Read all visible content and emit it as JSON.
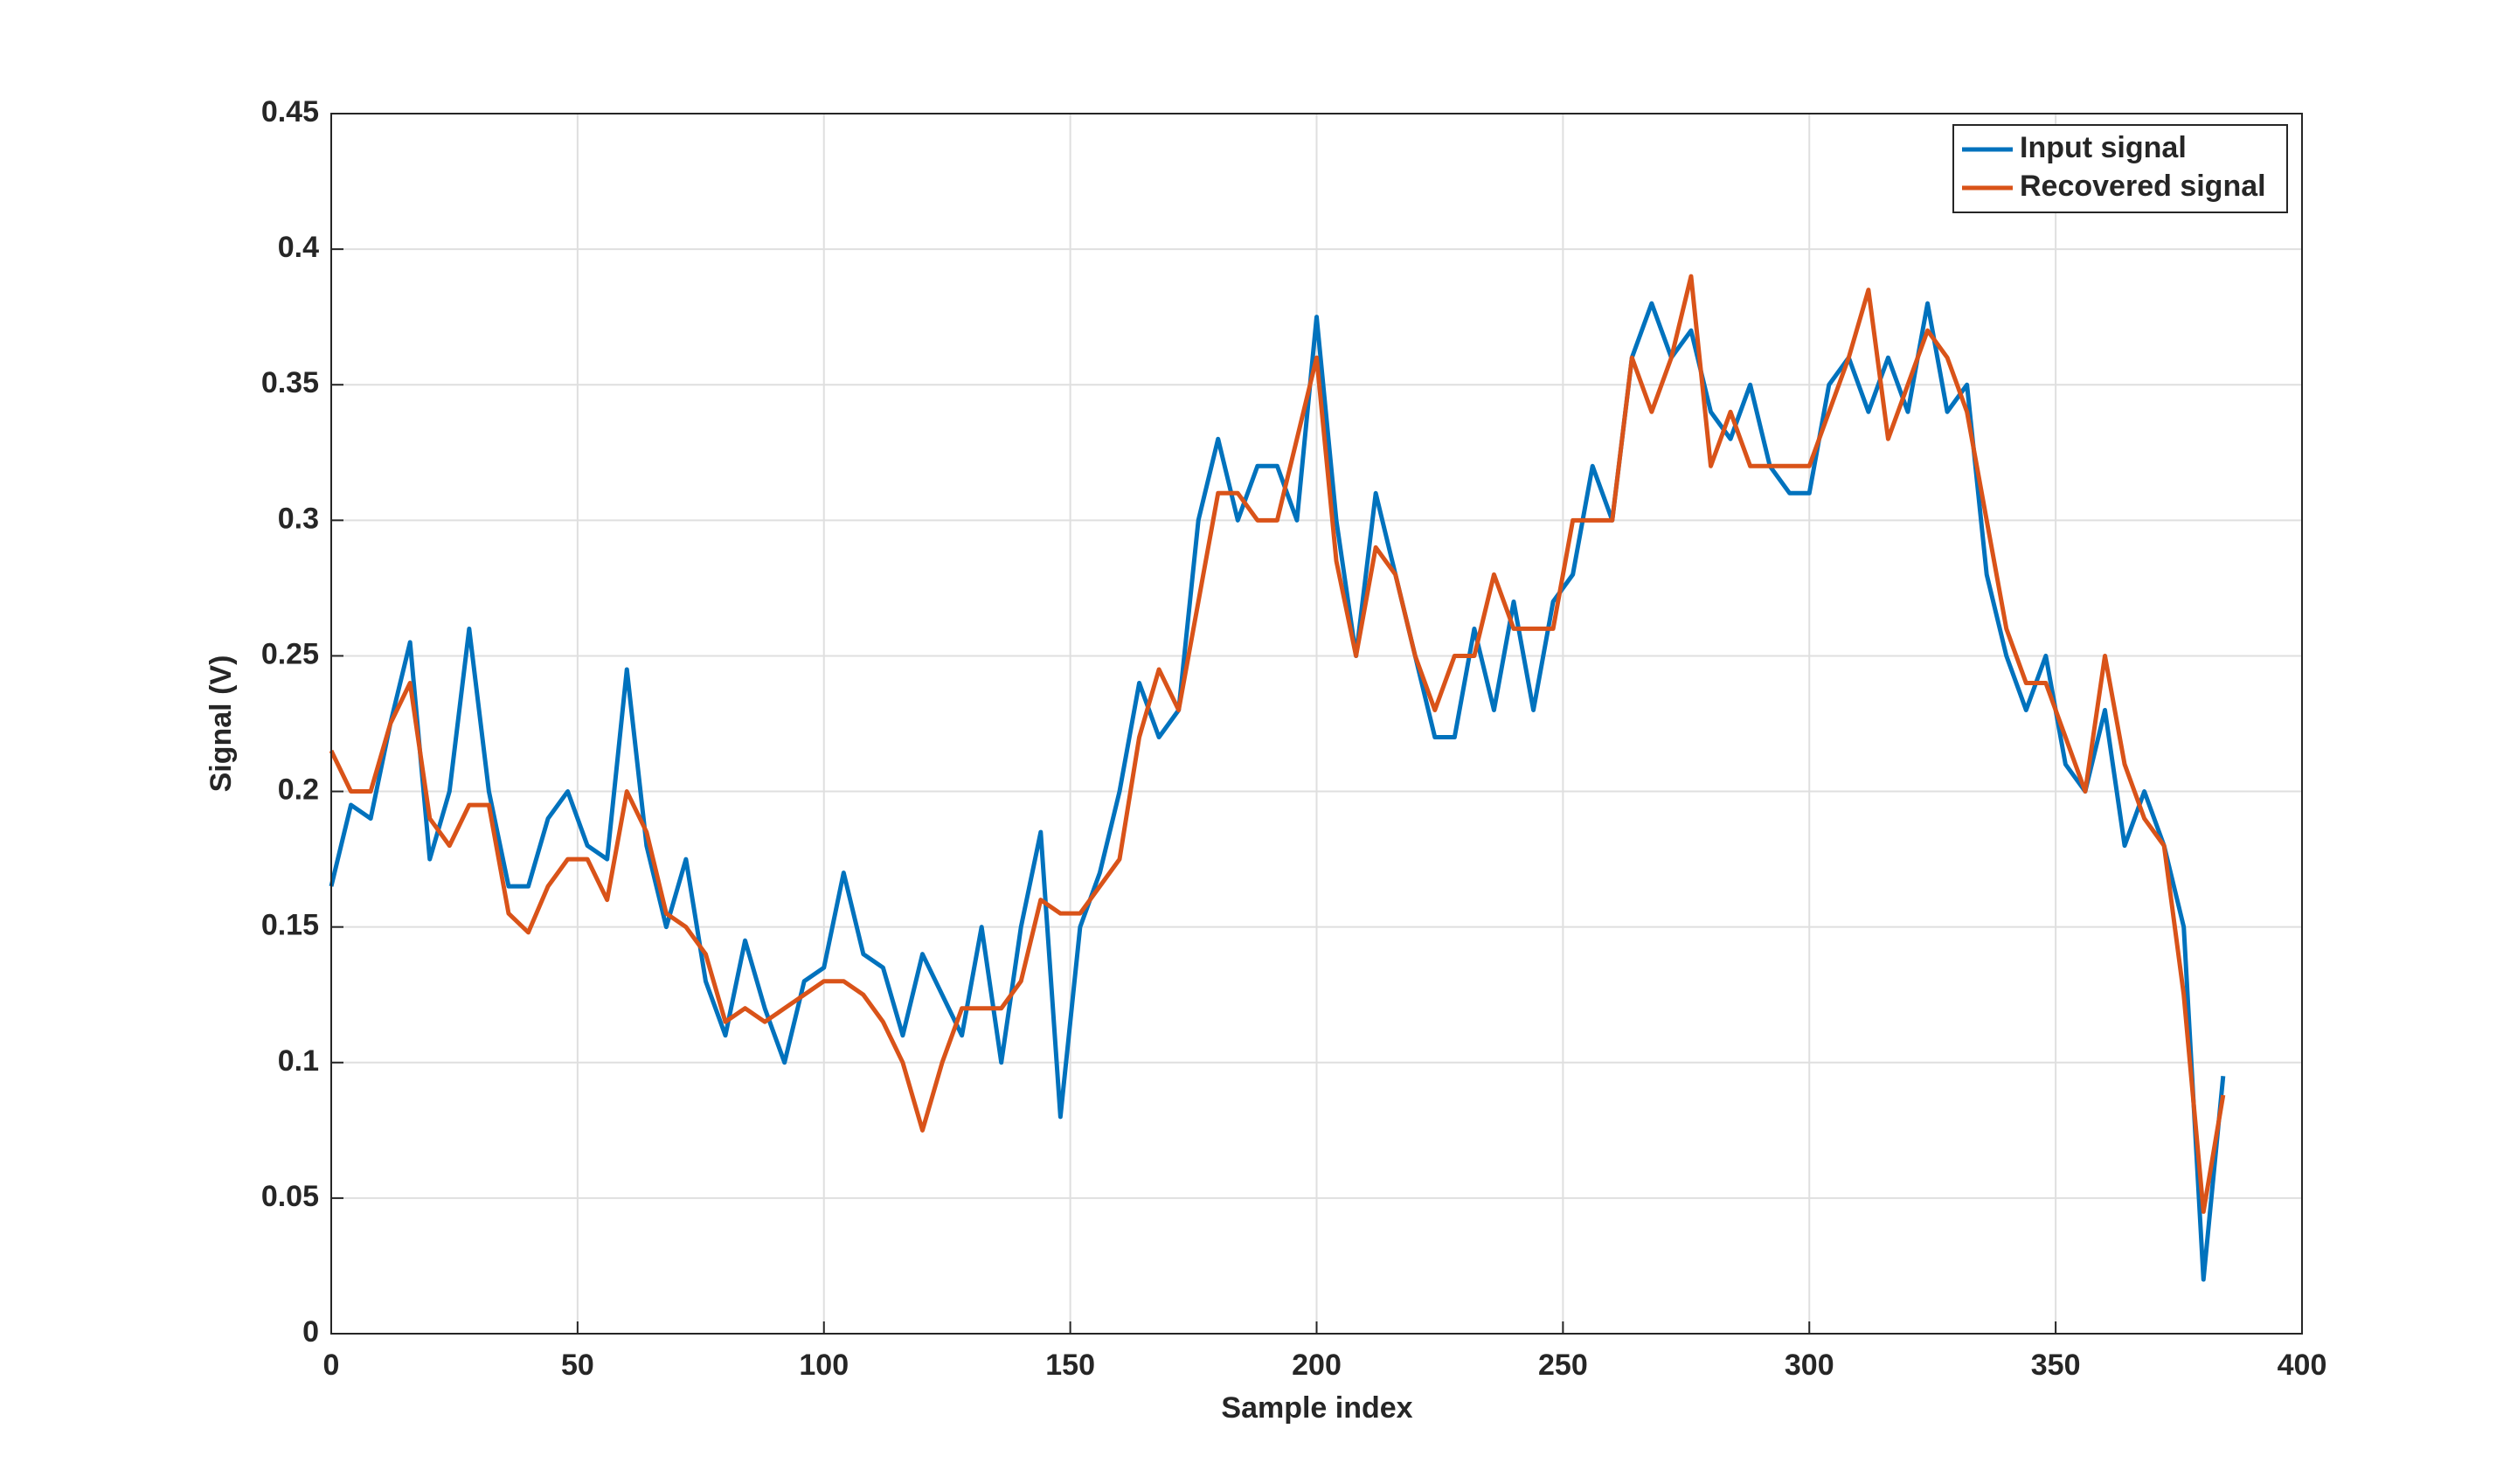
{
  "chart_data": {
    "type": "line",
    "xlabel": "Sample index",
    "ylabel": "Signal (V)",
    "x": [
      0,
      4,
      8,
      12,
      16,
      20,
      24,
      28,
      32,
      36,
      40,
      44,
      48,
      52,
      56,
      60,
      64,
      68,
      72,
      76,
      80,
      84,
      88,
      92,
      96,
      100,
      104,
      108,
      112,
      116,
      120,
      124,
      128,
      132,
      136,
      140,
      144,
      148,
      152,
      156,
      160,
      164,
      168,
      172,
      176,
      180,
      184,
      188,
      192,
      196,
      200,
      204,
      208,
      212,
      216,
      220,
      224,
      228,
      232,
      236,
      240,
      244,
      248,
      252,
      256,
      260,
      264,
      268,
      272,
      276,
      280,
      284,
      288,
      292,
      296,
      300,
      304,
      308,
      312,
      316,
      320,
      324,
      328,
      332,
      336,
      340,
      344,
      348,
      352,
      356,
      360,
      364,
      368,
      372,
      376,
      380,
      384
    ],
    "series": [
      {
        "name": "Input signal",
        "color": "#0072bd",
        "values": [
          0.165,
          0.195,
          0.19,
          0.225,
          0.255,
          0.175,
          0.2,
          0.26,
          0.2,
          0.165,
          0.165,
          0.19,
          0.2,
          0.18,
          0.175,
          0.245,
          0.18,
          0.15,
          0.175,
          0.13,
          0.11,
          0.145,
          0.12,
          0.1,
          0.13,
          0.135,
          0.17,
          0.14,
          0.135,
          0.11,
          0.14,
          0.125,
          0.11,
          0.15,
          0.1,
          0.15,
          0.185,
          0.08,
          0.15,
          0.17,
          0.2,
          0.24,
          0.22,
          0.23,
          0.3,
          0.33,
          0.3,
          0.32,
          0.32,
          0.3,
          0.375,
          0.3,
          0.25,
          0.31,
          0.28,
          0.25,
          0.22,
          0.22,
          0.26,
          0.23,
          0.27,
          0.23,
          0.27,
          0.28,
          0.32,
          0.3,
          0.36,
          0.38,
          0.36,
          0.37,
          0.34,
          0.33,
          0.35,
          0.32,
          0.31,
          0.31,
          0.35,
          0.36,
          0.34,
          0.36,
          0.34,
          0.38,
          0.34,
          0.35,
          0.28,
          0.25,
          0.23,
          0.25,
          0.21,
          0.2,
          0.23,
          0.18,
          0.2,
          0.18,
          0.15,
          0.02,
          0.095
        ]
      },
      {
        "name": "Recovered signal",
        "color": "#d95319",
        "values": [
          0.215,
          0.2,
          0.2,
          0.225,
          0.24,
          0.19,
          0.18,
          0.195,
          0.195,
          0.155,
          0.148,
          0.165,
          0.175,
          0.175,
          0.16,
          0.2,
          0.185,
          0.155,
          0.15,
          0.14,
          0.115,
          0.12,
          0.115,
          0.12,
          0.125,
          0.13,
          0.13,
          0.125,
          0.115,
          0.1,
          0.075,
          0.1,
          0.12,
          0.12,
          0.12,
          0.13,
          0.16,
          0.155,
          0.155,
          0.165,
          0.175,
          0.22,
          0.245,
          0.23,
          0.27,
          0.31,
          0.31,
          0.3,
          0.3,
          0.33,
          0.36,
          0.285,
          0.25,
          0.29,
          0.28,
          0.25,
          0.23,
          0.25,
          0.25,
          0.28,
          0.26,
          0.26,
          0.26,
          0.3,
          0.3,
          0.3,
          0.36,
          0.34,
          0.36,
          0.39,
          0.32,
          0.34,
          0.32,
          0.32,
          0.32,
          0.32,
          0.34,
          0.36,
          0.385,
          0.33,
          0.35,
          0.37,
          0.36,
          0.34,
          0.3,
          0.26,
          0.24,
          0.24,
          0.22,
          0.2,
          0.25,
          0.21,
          0.19,
          0.18,
          0.125,
          0.045,
          0.088
        ]
      }
    ],
    "xlim": [
      0,
      400
    ],
    "xticks": [
      0,
      50,
      100,
      150,
      200,
      250,
      300,
      350,
      400
    ],
    "ylim": [
      0,
      0.45
    ],
    "yticks": [
      0,
      0.05,
      0.1,
      0.15,
      0.2,
      0.25,
      0.3,
      0.35,
      0.4,
      0.45
    ],
    "grid": true,
    "legend": "northeast"
  }
}
